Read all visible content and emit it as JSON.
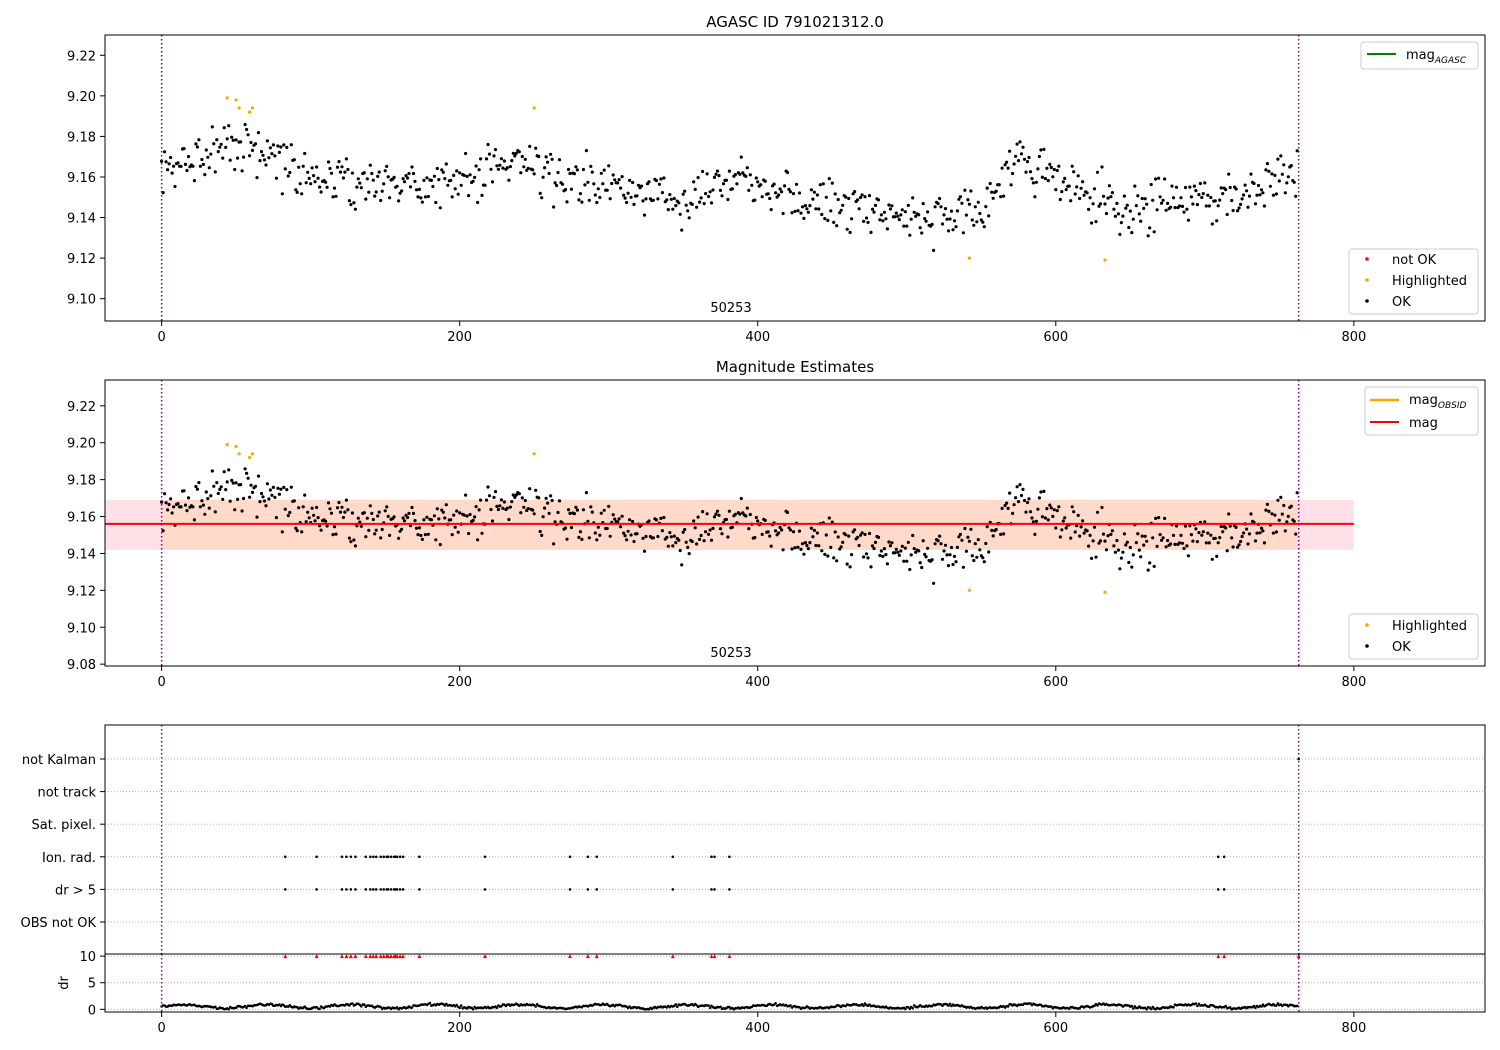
{
  "chart_data": [
    {
      "type": "scatter",
      "title": "AGASC ID 791021312.0",
      "xlabel": "",
      "ylabel": "",
      "xlim": [
        -38,
        888
      ],
      "ylim": [
        9.089,
        9.23
      ],
      "xticks": [
        0,
        200,
        400,
        600,
        800
      ],
      "yticks": [
        9.1,
        9.12,
        9.14,
        9.16,
        9.18,
        9.2,
        9.22
      ],
      "obs_label": "50253",
      "obs_label_x": 380,
      "vlines": [
        0,
        763
      ],
      "legend_top": {
        "location": "upper right",
        "entries": [
          {
            "name": "mag",
            "subscript": "AGASC",
            "color": "#008000",
            "marker": "line"
          }
        ]
      },
      "legend_bottom": {
        "location": "lower right",
        "entries": [
          {
            "name": "not OK",
            "color": "#ff0000",
            "marker": "dot"
          },
          {
            "name": "Highlighted",
            "color": "#ffa500",
            "marker": "dot"
          },
          {
            "name": "OK",
            "color": "#000000",
            "marker": "dot"
          }
        ]
      },
      "highlighted": [
        [
          44,
          9.199
        ],
        [
          50,
          9.198
        ],
        [
          52,
          9.194
        ],
        [
          59,
          9.192
        ],
        [
          61,
          9.194
        ],
        [
          250,
          9.194
        ],
        [
          542,
          9.12
        ],
        [
          633,
          9.119
        ]
      ],
      "not_ok": [],
      "ok_series": {
        "n_points": 763,
        "x_range": [
          0,
          763
        ],
        "mean": 9.156
      }
    },
    {
      "type": "scatter",
      "title": "Magnitude Estimates",
      "xlabel": "",
      "ylabel": "",
      "xlim": [
        -38,
        888
      ],
      "ylim": [
        9.079,
        9.234
      ],
      "xticks": [
        0,
        200,
        400,
        600,
        800
      ],
      "yticks": [
        9.08,
        9.1,
        9.12,
        9.14,
        9.16,
        9.18,
        9.2,
        9.22
      ],
      "obs_label": "50253",
      "obs_label_x": 380,
      "vlines": [
        0,
        763
      ],
      "mag_line": {
        "value": 9.156,
        "x_range": [
          -38,
          800
        ],
        "color": "#ff0000"
      },
      "mag_band_outer": {
        "low": 9.142,
        "high": 9.169,
        "x_range": [
          -38,
          800
        ],
        "color": "#ffe0e6"
      },
      "mag_band_inner": {
        "low": 9.142,
        "high": 9.169,
        "x_range": [
          0,
          763
        ],
        "color": "#ffd9c9"
      },
      "legend_top": {
        "location": "upper right",
        "entries": [
          {
            "name": "mag",
            "subscript": "OBSID",
            "color": "#ffa500",
            "marker": "line"
          },
          {
            "name": "mag",
            "subscript": "",
            "color": "#ff0000",
            "marker": "line"
          }
        ]
      },
      "legend_bottom": {
        "location": "lower right",
        "entries": [
          {
            "name": "Highlighted",
            "color": "#ffa500",
            "marker": "dot"
          },
          {
            "name": "OK",
            "color": "#000000",
            "marker": "dot"
          }
        ]
      },
      "highlighted": [
        [
          44,
          9.199
        ],
        [
          50,
          9.198
        ],
        [
          52,
          9.194
        ],
        [
          59,
          9.192
        ],
        [
          61,
          9.194
        ],
        [
          250,
          9.194
        ],
        [
          542,
          9.12
        ],
        [
          633,
          9.119
        ]
      ]
    },
    {
      "type": "scatter",
      "title": "",
      "xlabel": "",
      "xlim": [
        -38,
        888
      ],
      "xticks": [
        0,
        200,
        400,
        600,
        800
      ],
      "vlines": [
        0,
        763
      ],
      "flag_rows": [
        "not Kalman",
        "not track",
        "Sat. pixel.",
        "Ion. rad.",
        "dr > 5",
        "OBS not OK"
      ],
      "flags": {
        "not Kalman": [
          763
        ],
        "not track": [],
        "Sat. pixel.": [],
        "Ion. rad.": [
          83,
          104,
          121,
          124,
          127,
          130,
          137,
          140,
          142,
          144,
          147,
          149,
          151,
          152,
          154,
          156,
          157,
          158,
          160,
          162,
          173,
          217,
          274,
          286,
          292,
          343,
          369,
          371,
          381,
          709,
          713
        ],
        "dr > 5": [
          83,
          104,
          121,
          124,
          127,
          130,
          137,
          140,
          142,
          144,
          147,
          149,
          151,
          152,
          154,
          156,
          157,
          158,
          160,
          162,
          173,
          217,
          274,
          286,
          292,
          343,
          369,
          371,
          381,
          709,
          713
        ],
        "OBS not OK": []
      },
      "dr_panel": {
        "ylabel": "dr",
        "yticks": [
          0,
          5,
          10
        ],
        "ylim": [
          -0.5,
          10.4
        ],
        "clipped_value": 10,
        "clipped_marker_color": "#ff0000",
        "clipped_x": [
          83,
          104,
          121,
          124,
          127,
          130,
          137,
          140,
          142,
          144,
          147,
          149,
          151,
          152,
          154,
          156,
          157,
          158,
          160,
          162,
          173,
          217,
          274,
          286,
          292,
          343,
          369,
          371,
          381,
          709,
          713,
          763
        ],
        "typical_range": [
          0,
          1.3
        ]
      }
    }
  ]
}
